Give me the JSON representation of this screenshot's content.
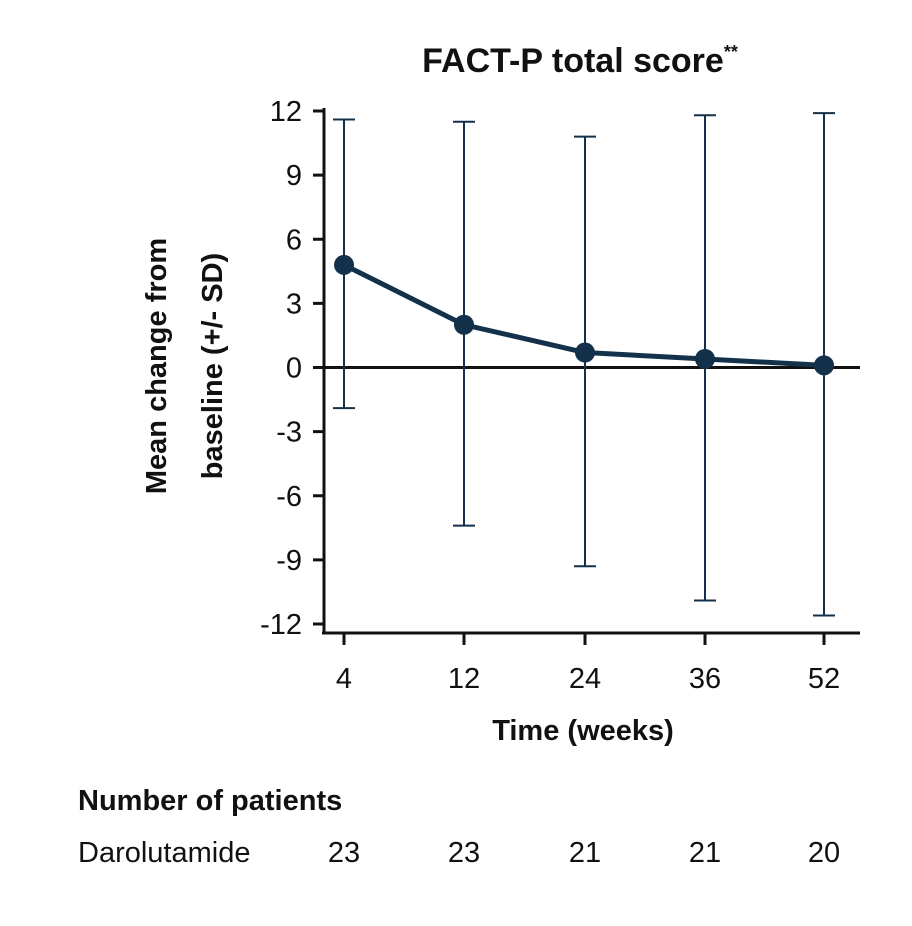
{
  "chart_data": {
    "type": "line",
    "title": "FACT-P total score",
    "title_superscript": "**",
    "xlabel": "Time (weeks)",
    "ylabel_lines": [
      "Mean change from",
      "baseline (+/- SD)"
    ],
    "categories": [
      "4",
      "12",
      "24",
      "36",
      "52"
    ],
    "yticks": [
      "12",
      "9",
      "6",
      "3",
      "0",
      "-3",
      "-6",
      "-9",
      "-12"
    ],
    "ylim": [
      -12,
      12
    ],
    "grid": false,
    "zero_line": true,
    "series": [
      {
        "values": [
          4.8,
          2.0,
          0.7,
          0.4,
          0.1
        ],
        "sd_upper": [
          11.6,
          11.5,
          10.8,
          11.8,
          11.9
        ],
        "sd_lower": [
          -1.9,
          -7.4,
          -9.3,
          -10.9,
          -11.6
        ],
        "color": "#13314a"
      }
    ]
  },
  "patients_table": {
    "header": "Number of patients",
    "rows": [
      {
        "label": "Darolutamide",
        "values": [
          "23",
          "23",
          "21",
          "21",
          "20"
        ]
      }
    ]
  }
}
